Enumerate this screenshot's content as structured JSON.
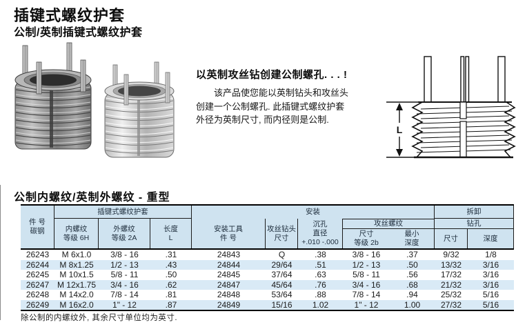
{
  "page": {
    "title": "插键式螺纹护套",
    "subtitle": "公制/英制插键式螺纹护套"
  },
  "intro": {
    "heading": "以英制攻丝钻创建公制螺孔. . . !",
    "body": "该产品使您能以英制钻头和攻丝头\n创建一个公制螺孔. 此插键式螺纹护套\n外径为英制尺寸, 而内径则是公制."
  },
  "images": {
    "left_insert_alt": "插键式螺纹护套照片(深色钢)",
    "right_insert_alt": "插键式螺纹护套照片(浅色钢)",
    "drawing_alt": "螺纹护套尺寸线图",
    "dimension_label": "L"
  },
  "section": {
    "heading": "公制内螺纹/英制外螺纹 - 重型"
  },
  "table": {
    "groups": {
      "insert": "插键式螺纹护套",
      "install": "安装",
      "removal": "拆卸",
      "tapped_thread": "攻丝螺纹",
      "drill": "钻孔"
    },
    "columns": {
      "part_no": "件 号\n碳钢",
      "internal_thread": "内螺纹\n等级 6H",
      "external_thread": "外螺纹\n等级 2A",
      "length": "长度\nL",
      "install_tool": "安装工具\n件 号",
      "tap_drill": "攻丝钻头\n尺寸",
      "cbore": "沉孔\n直径\n+.010 -.000",
      "tap_size": "尺寸\n等级 2b",
      "min_depth": "最小\n深度",
      "drill_size": "尺寸",
      "drill_depth": "深度"
    },
    "rows": [
      [
        "26243",
        "M 6x1.0",
        "3/8 - 16",
        ".31",
        "24843",
        "Q",
        ".38",
        "3/8 - 16",
        ".37",
        "9/32",
        "1/8"
      ],
      [
        "26244",
        "M 8x1.25",
        "1/2 - 13",
        ".43",
        "24844",
        "29/64",
        ".51",
        "1/2 - 13",
        ".50",
        "13/32",
        "3/16"
      ],
      [
        "26245",
        "M 10x1.5",
        "5/8 - 11",
        ".50",
        "24845",
        "37/64",
        ".63",
        "5/8 - 11",
        ".56",
        "17/32",
        "3/16"
      ],
      [
        "26247",
        "M 12x1.75",
        "3/4 - 16",
        ".62",
        "24847",
        "45/64",
        ".76",
        "3/4 - 16",
        ".68",
        "21/32",
        "3/16"
      ],
      [
        "26248",
        "M 14x2.0",
        "7/8 - 14",
        ".81",
        "24848",
        "53/64",
        ".88",
        "7/8 - 14",
        ".94",
        "25/32",
        "5/16"
      ],
      [
        "26249",
        "M 16x2.0",
        "1\" - 12",
        ".87",
        "24849",
        "15/16",
        "1.02",
        "1\" - 12",
        "1.00",
        "27/32",
        "5/16"
      ]
    ]
  },
  "footnote": "除公制的内螺纹外, 其余尺寸单位均为英寸."
}
